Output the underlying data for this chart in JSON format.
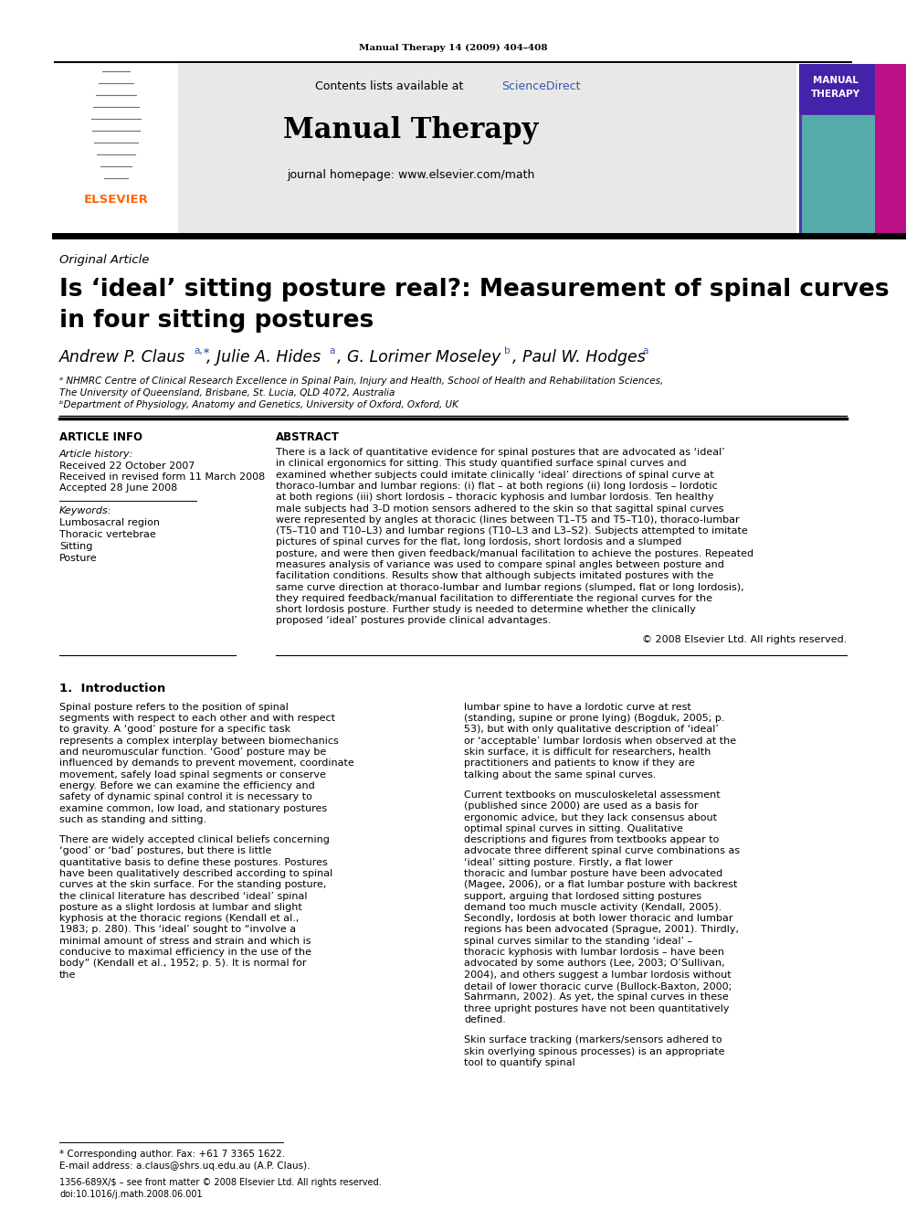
{
  "page_title_small": "Manual Therapy 14 (2009) 404–408",
  "journal_name": "Manual Therapy",
  "journal_homepage": "journal homepage: www.elsevier.com/math",
  "contents_line_plain": "Contents lists available at ",
  "contents_line_link": "ScienceDirect",
  "article_type": "Original Article",
  "title_line1": "Is ‘ideal’ sitting posture real?: Measurement of spinal curves",
  "title_line2": "in four sitting postures",
  "affil_a": "ᵃ NHMRC Centre of Clinical Research Excellence in Spinal Pain, Injury and Health, School of Health and Rehabilitation Sciences,",
  "affil_a2": "The University of Queensland, Brisbane, St. Lucia, QLD 4072, Australia",
  "affil_b": "ᵇDepartment of Physiology, Anatomy and Genetics, University of Oxford, Oxford, UK",
  "section_article_info": "ARTICLE INFO",
  "section_abstract": "ABSTRACT",
  "article_history_label": "Article history:",
  "received1": "Received 22 October 2007",
  "received2": "Received in revised form 11 March 2008",
  "accepted": "Accepted 28 June 2008",
  "keywords_label": "Keywords:",
  "keywords": [
    "Lumbosacral region",
    "Thoracic vertebrae",
    "Sitting",
    "Posture"
  ],
  "abstract_text": "There is a lack of quantitative evidence for spinal postures that are advocated as ‘ideal’ in clinical ergonomics for sitting. This study quantified surface spinal curves and examined whether subjects could imitate clinically ‘ideal’ directions of spinal curve at thoraco-lumbar and lumbar regions: (i) flat – at both regions (ii) long lordosis – lordotic at both regions (iii) short lordosis – thoracic kyphosis and lumbar lordosis. Ten healthy male subjects had 3-D motion sensors adhered to the skin so that sagittal spinal curves were represented by angles at thoracic (lines between T1–T5 and T5–T10), thoraco-lumbar (T5–T10 and T10–L3) and lumbar regions (T10–L3 and L3–S2). Subjects attempted to imitate pictures of spinal curves for the flat, long lordosis, short lordosis and a slumped posture, and were then given feedback/manual facilitation to achieve the postures. Repeated measures analysis of variance was used to compare spinal angles between posture and facilitation conditions. Results show that although subjects imitated postures with the same curve direction at thoraco-lumbar and lumbar regions (slumped, flat or long lordosis), they required feedback/manual facilitation to differentiate the regional curves for the short lordosis posture. Further study is needed to determine whether the clinically proposed ‘ideal’ postures provide clinical advantages.",
  "copyright": "© 2008 Elsevier Ltd. All rights reserved.",
  "intro_heading": "1.  Introduction",
  "intro_col1_p1": "Spinal posture refers to the position of spinal segments with respect to each other and with respect to gravity. A ‘good’ posture for a specific task represents a complex interplay between biomechanics and neuromuscular function. ‘Good’ posture may be influenced by demands to prevent movement, coordinate movement, safely load spinal segments or conserve energy. Before we can examine the efficiency and safety of dynamic spinal control it is necessary to examine common, low load, and stationary postures such as standing and sitting.",
  "intro_col1_p2": "There are widely accepted clinical beliefs concerning ‘good’ or ‘bad’ postures, but there is little quantitative basis to define these postures. Postures have been qualitatively described according to spinal curves at the skin surface. For the standing posture, the clinical literature has described ‘ideal’ spinal posture as a slight lordosis at lumbar and slight kyphosis at the thoracic regions (Kendall et al., 1983; p. 280). This ‘ideal’ sought to “involve a minimal amount of stress and strain and which is conducive to maximal efficiency in the use of the body” (Kendall et al., 1952; p. 5). It is normal for the",
  "intro_col2_p1": "lumbar spine to have a lordotic curve at rest (standing, supine or prone lying) (Bogduk, 2005; p. 53), but with only qualitative description of ‘ideal’ or ‘acceptable’ lumbar lordosis when observed at the skin surface, it is difficult for researchers, health practitioners and patients to know if they are talking about the same spinal curves.",
  "intro_col2_p2": "Current textbooks on musculoskeletal assessment (published since 2000) are used as a basis for ergonomic advice, but they lack consensus about optimal spinal curves in sitting. Qualitative descriptions and figures from textbooks appear to advocate three different spinal curve combinations as ‘ideal’ sitting posture. Firstly, a flat lower thoracic and lumbar posture have been advocated (Magee, 2006), or a flat lumbar posture with backrest support, arguing that lordosed sitting postures demand too much muscle activity (Kendall, 2005). Secondly, lordosis at both lower thoracic and lumbar regions has been advocated (Sprague, 2001). Thirdly, spinal curves similar to the standing ‘ideal’ – thoracic kyphosis with lumbar lordosis – have been advocated by some authors (Lee, 2003; O’Sullivan, 2004), and others suggest a lumbar lordosis without detail of lower thoracic curve (Bullock-Baxton, 2000; Sahrmann, 2002). As yet, the spinal curves in these three upright postures have not been quantitatively defined.",
  "intro_col2_p3": "Skin surface tracking (markers/sensors adhered to skin overlying spinous processes) is an appropriate tool to quantify spinal",
  "footnote_star": "* Corresponding author. Fax: +61 7 3365 1622.",
  "footnote_email": "E-mail address: a.claus@shrs.uq.edu.au (A.P. Claus).",
  "footer_issn": "1356-689X/$ – see front matter © 2008 Elsevier Ltd. All rights reserved.",
  "footer_doi": "doi:10.1016/j.math.2008.06.001",
  "bg_color": "#ffffff",
  "header_bg": "#e8e8e8",
  "text_color": "#000000",
  "link_color": "#3355aa",
  "elsevier_orange": "#ff6600",
  "title_color": "#000000"
}
